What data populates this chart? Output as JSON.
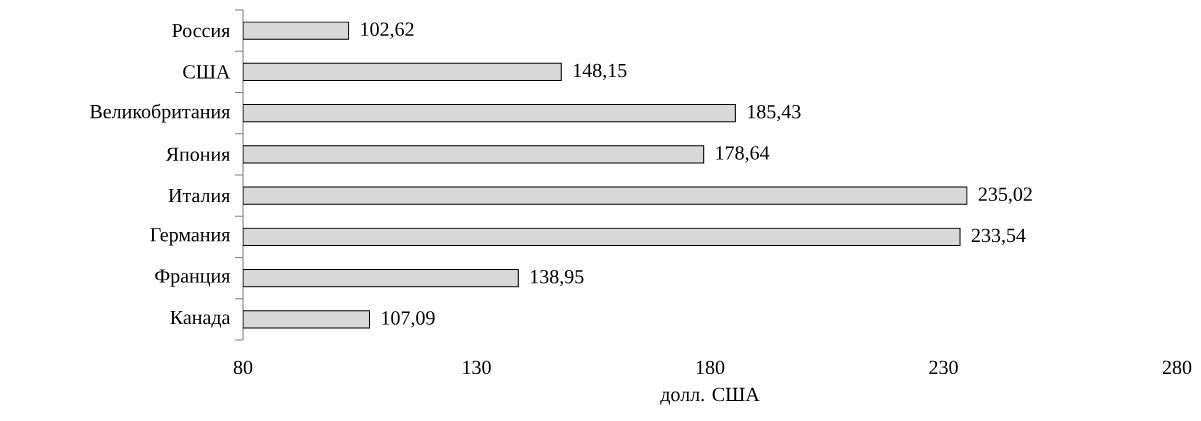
{
  "chart_data": {
    "type": "bar",
    "orientation": "horizontal",
    "xlabel": "долл. США",
    "categories": [
      "Россия",
      "США",
      "Великобритания",
      "Япония",
      "Италия",
      "Германия",
      "Франция",
      "Канада"
    ],
    "values": [
      102.62,
      148.15,
      185.43,
      178.64,
      235.02,
      233.54,
      138.95,
      107.09
    ],
    "value_labels": [
      "102,62",
      "148,15",
      "185,43",
      "178,64",
      "235,02",
      "233,54",
      "138,95",
      "107,09"
    ],
    "color": "#d9d9d9",
    "xlim": [
      80,
      280
    ],
    "xticks": [
      80,
      130,
      180,
      230,
      280
    ],
    "grid": false
  }
}
